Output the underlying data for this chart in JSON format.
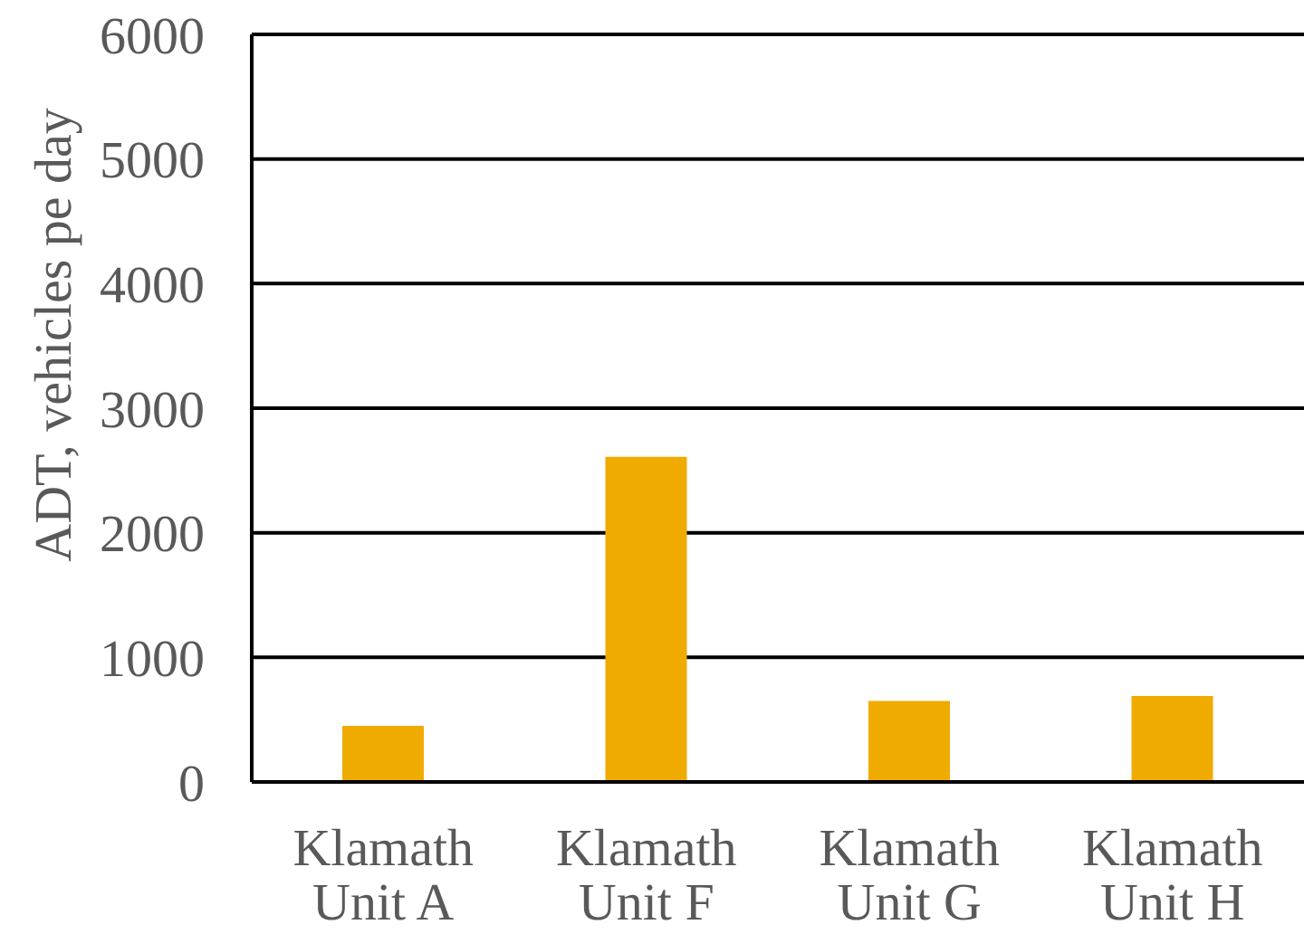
{
  "chart_data": {
    "type": "bar",
    "ylabel": "ADT, vehicles pe day",
    "categories": [
      "Klamath Unit A",
      "Klamath Unit F",
      "Klamath Unit G",
      "Klamath Unit H"
    ],
    "values": [
      450,
      2610,
      650,
      690
    ],
    "color": "#f0ab00",
    "ylim": [
      0,
      6000
    ],
    "yticks": [
      0,
      1000,
      2000,
      3000,
      4000,
      5000,
      6000
    ],
    "grid": "y"
  }
}
